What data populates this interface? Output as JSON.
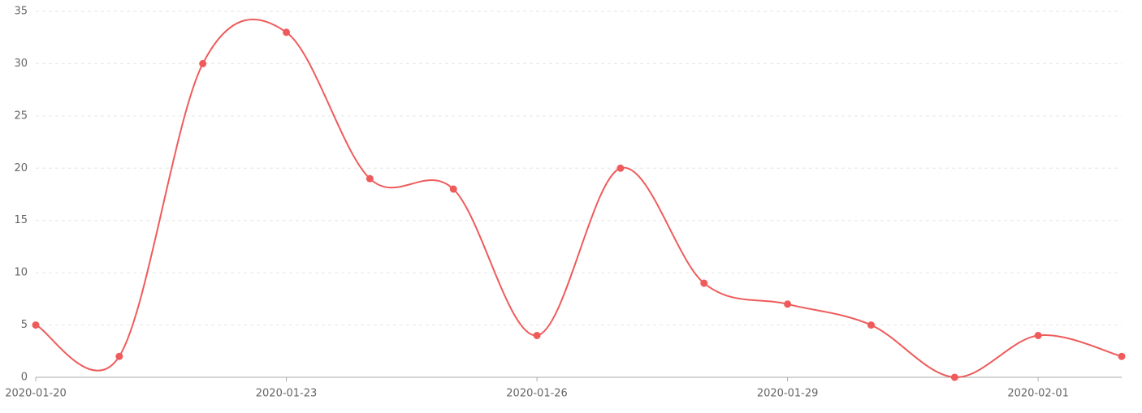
{
  "chart_data": {
    "type": "line",
    "categories": [
      "2020-01-20",
      null,
      null,
      "2020-01-23",
      null,
      null,
      "2020-01-26",
      null,
      null,
      "2020-01-29",
      null,
      null,
      "2020-02-01",
      null
    ],
    "series": [
      {
        "color": "#ef5b5b",
        "values": [
          5,
          2,
          30,
          33,
          19,
          18,
          4,
          20,
          9,
          7,
          5,
          0,
          4,
          2
        ]
      }
    ],
    "ylim": [
      0,
      35
    ],
    "yticks": [
      0,
      5,
      10,
      15,
      20,
      25,
      30,
      35
    ],
    "grid": true,
    "smooth": true
  }
}
